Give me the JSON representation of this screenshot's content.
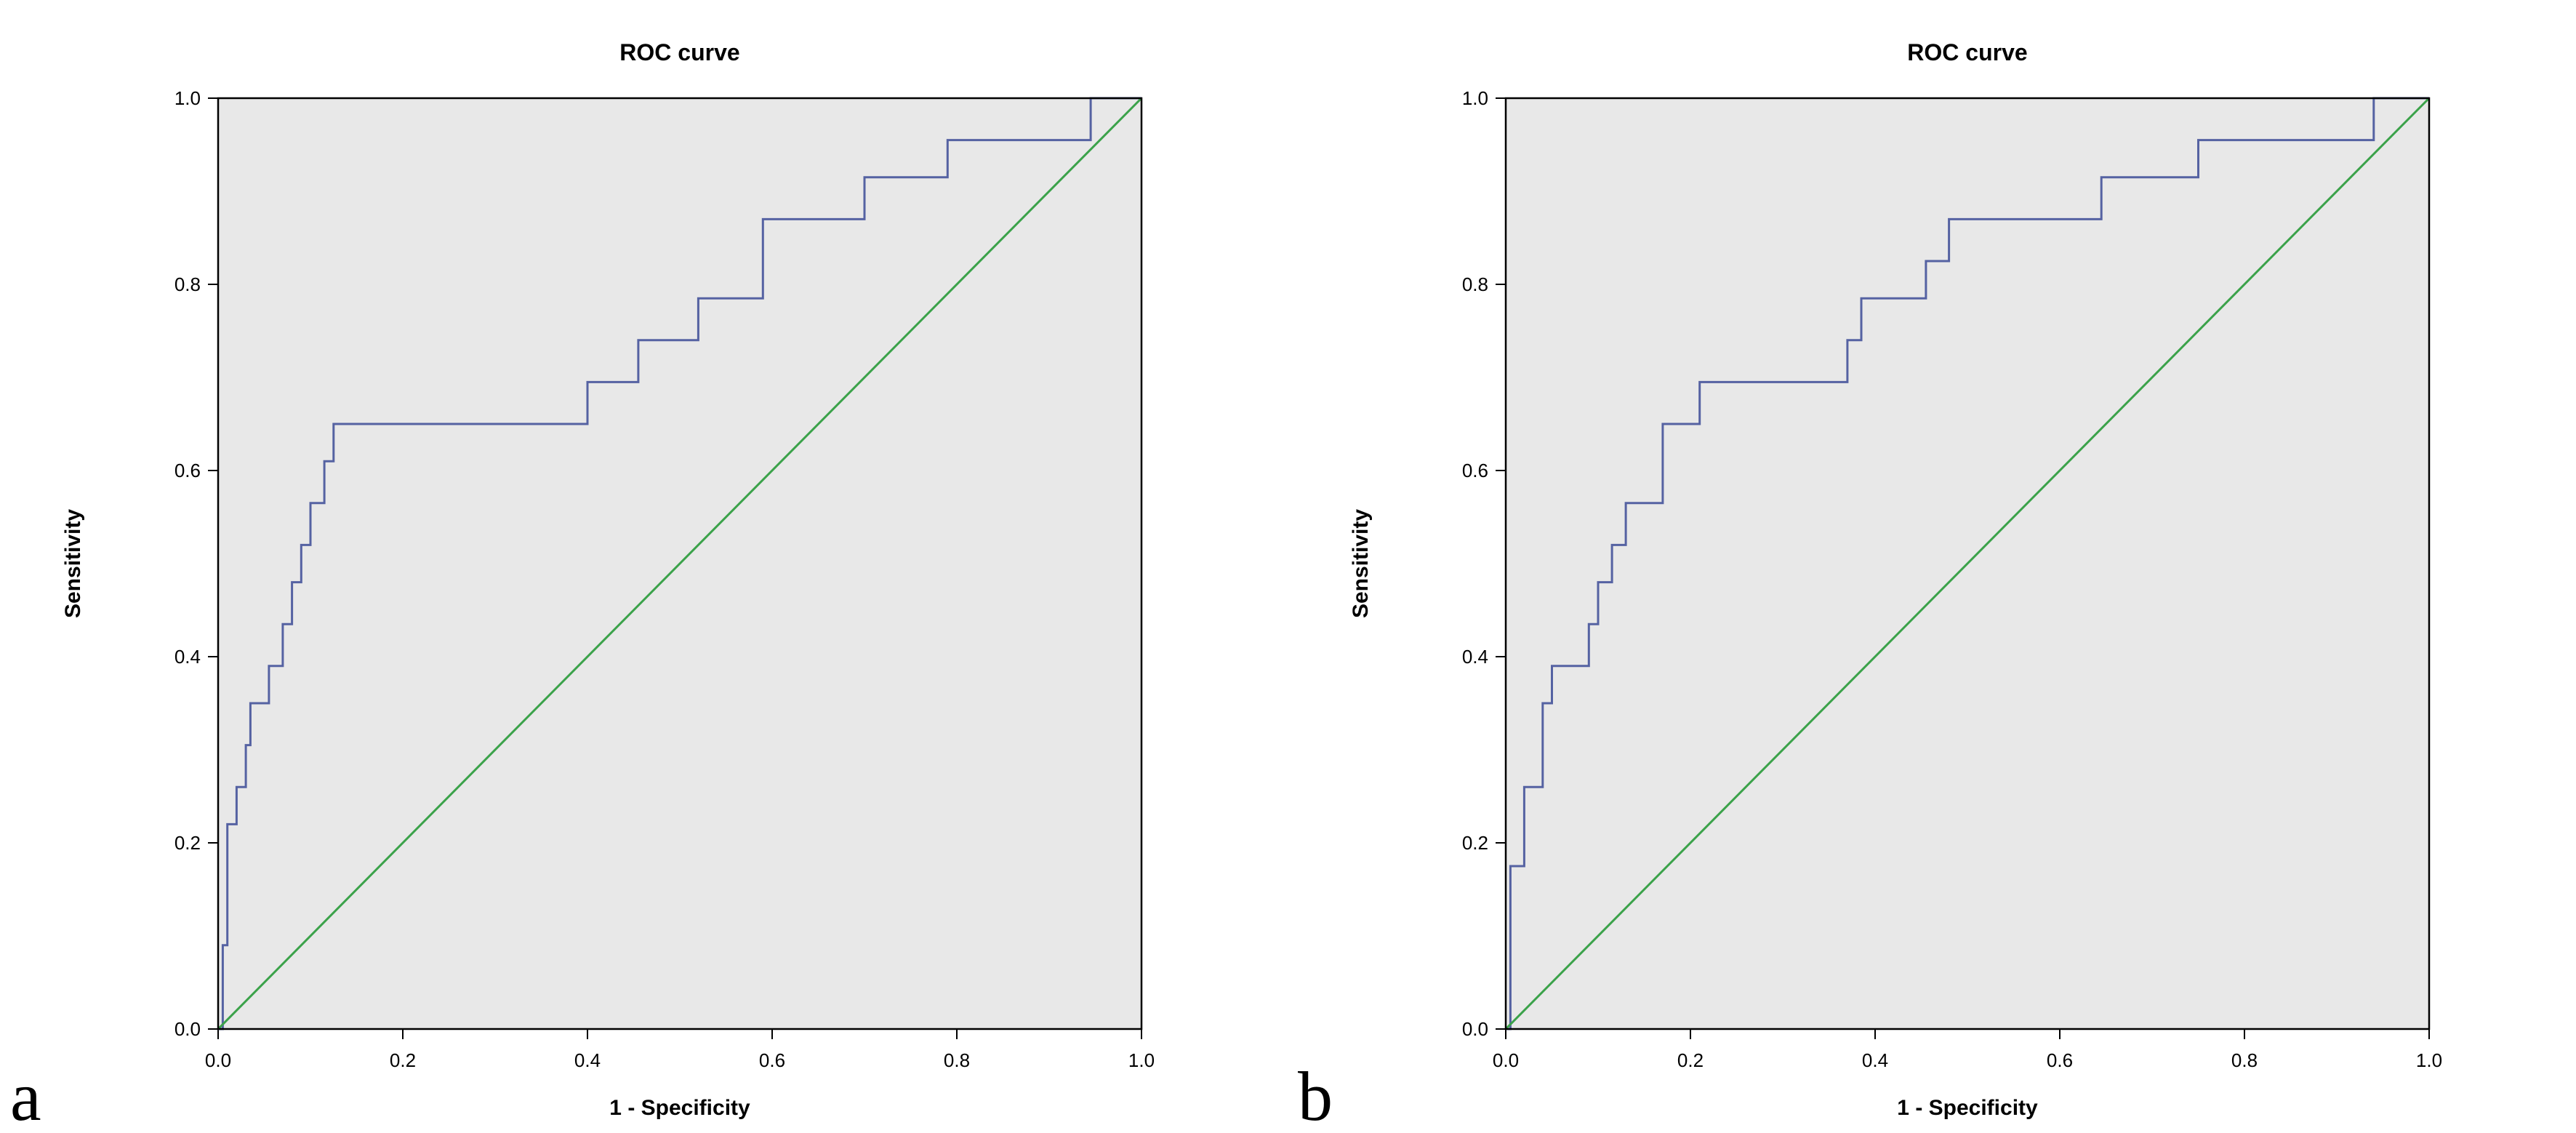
{
  "figure": {
    "background": "#ffffff",
    "text_color": "#000000"
  },
  "chart_data": [
    {
      "type": "line",
      "subtype": "roc-step",
      "panel_label": "a",
      "title": "ROC curve",
      "xlabel": "1 - Specificity",
      "ylabel": "Sensitivity",
      "xlim": [
        0.0,
        1.0
      ],
      "ylim": [
        0.0,
        1.0
      ],
      "xticks": [
        "0.0",
        "0.2",
        "0.4",
        "0.6",
        "0.8",
        "1.0"
      ],
      "yticks": [
        "0.0",
        "0.2",
        "0.4",
        "0.6",
        "0.8",
        "1.0"
      ],
      "grid": false,
      "legend": "none",
      "plot_bg": "#e8e8e8",
      "border_color": "#000000",
      "series": [
        {
          "name": "ROC curve",
          "color": "#5562a2",
          "style": "step",
          "points": [
            [
              0.0,
              0.0
            ],
            [
              0.005,
              0.09
            ],
            [
              0.01,
              0.22
            ],
            [
              0.02,
              0.26
            ],
            [
              0.03,
              0.305
            ],
            [
              0.035,
              0.35
            ],
            [
              0.055,
              0.39
            ],
            [
              0.07,
              0.435
            ],
            [
              0.08,
              0.48
            ],
            [
              0.09,
              0.52
            ],
            [
              0.1,
              0.565
            ],
            [
              0.115,
              0.61
            ],
            [
              0.125,
              0.65
            ],
            [
              0.4,
              0.695
            ],
            [
              0.455,
              0.74
            ],
            [
              0.52,
              0.785
            ],
            [
              0.59,
              0.87
            ],
            [
              0.7,
              0.915
            ],
            [
              0.79,
              0.955
            ],
            [
              0.945,
              1.0
            ],
            [
              1.0,
              1.0
            ]
          ]
        },
        {
          "name": "Reference line",
          "color": "#3ba24a",
          "style": "straight",
          "points": [
            [
              0.0,
              0.0
            ],
            [
              1.0,
              1.0
            ]
          ]
        }
      ]
    },
    {
      "type": "line",
      "subtype": "roc-step",
      "panel_label": "b",
      "title": "ROC curve",
      "xlabel": "1 - Specificity",
      "ylabel": "Sensitivity",
      "xlim": [
        0.0,
        1.0
      ],
      "ylim": [
        0.0,
        1.0
      ],
      "xticks": [
        "0.0",
        "0.2",
        "0.4",
        "0.6",
        "0.8",
        "1.0"
      ],
      "yticks": [
        "0.0",
        "0.2",
        "0.4",
        "0.6",
        "0.8",
        "1.0"
      ],
      "grid": false,
      "legend": "none",
      "plot_bg": "#e8e8e8",
      "border_color": "#000000",
      "series": [
        {
          "name": "ROC curve",
          "color": "#5562a2",
          "style": "step",
          "points": [
            [
              0.0,
              0.0
            ],
            [
              0.005,
              0.175
            ],
            [
              0.02,
              0.26
            ],
            [
              0.04,
              0.35
            ],
            [
              0.05,
              0.39
            ],
            [
              0.09,
              0.435
            ],
            [
              0.1,
              0.48
            ],
            [
              0.115,
              0.52
            ],
            [
              0.13,
              0.565
            ],
            [
              0.17,
              0.65
            ],
            [
              0.21,
              0.695
            ],
            [
              0.37,
              0.74
            ],
            [
              0.385,
              0.785
            ],
            [
              0.455,
              0.825
            ],
            [
              0.48,
              0.87
            ],
            [
              0.645,
              0.915
            ],
            [
              0.75,
              0.955
            ],
            [
              0.94,
              1.0
            ],
            [
              1.0,
              1.0
            ]
          ]
        },
        {
          "name": "Reference line",
          "color": "#3ba24a",
          "style": "straight",
          "points": [
            [
              0.0,
              0.0
            ],
            [
              1.0,
              1.0
            ]
          ]
        }
      ]
    }
  ]
}
